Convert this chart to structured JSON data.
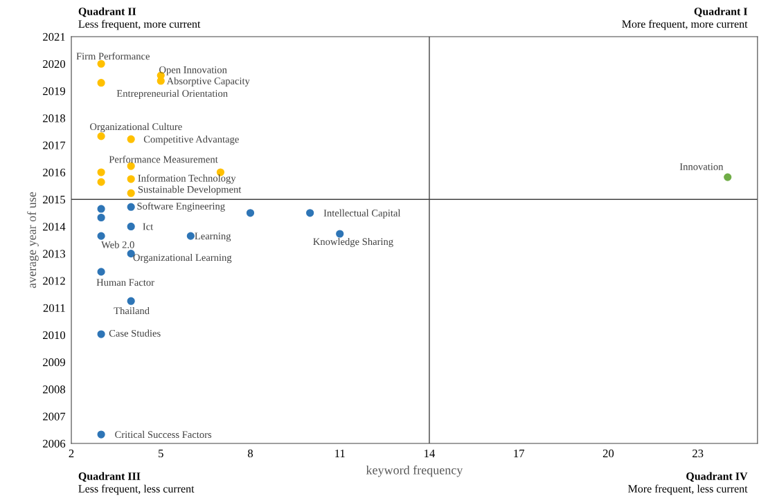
{
  "chart_data": {
    "type": "scatter",
    "xlabel": "keyword frequency",
    "ylabel": "average year of use",
    "xlim": [
      2,
      25
    ],
    "xticks": [
      2,
      5,
      8,
      11,
      14,
      17,
      20,
      23
    ],
    "ylim": [
      2006,
      2021
    ],
    "yticks": [
      2006,
      2007,
      2008,
      2009,
      2010,
      2011,
      2012,
      2013,
      2014,
      2015,
      2016,
      2017,
      2018,
      2019,
      2020,
      2021
    ],
    "grid": false,
    "legend": false,
    "marker": "circle",
    "series": [
      {
        "color": "#ffc000",
        "x": [
          3,
          3,
          5,
          5,
          3,
          4,
          4,
          7,
          3,
          4,
          3,
          4
        ],
        "values": [
          2020.0,
          2019.3,
          2019.57,
          2019.37,
          2017.33,
          2017.22,
          2016.23,
          2016.0,
          2016.0,
          2015.75,
          2015.64,
          2015.23
        ]
      },
      {
        "color": "#70ad47",
        "x": [
          24
        ],
        "values": [
          2015.82
        ]
      },
      {
        "color": "#2e75b6",
        "x": [
          3,
          3,
          4,
          4,
          8,
          10,
          11,
          6,
          3,
          4,
          3,
          4,
          3,
          3
        ],
        "values": [
          2014.65,
          2014.33,
          2014.72,
          2014.0,
          2014.5,
          2014.5,
          2013.73,
          2013.65,
          2013.65,
          2013.0,
          2012.33,
          2011.25,
          2010.03,
          2006.33
        ]
      }
    ],
    "ref_lines": [
      {
        "axis": "x",
        "value": 14,
        "color": "#404040"
      },
      {
        "axis": "y",
        "value": 2015,
        "color": "#404040"
      }
    ],
    "annotations": [
      {
        "text": "Firm Performance",
        "x": 3,
        "y": 2020.0
      },
      {
        "text": "Open Innovation",
        "x": 5,
        "y": 2019.57
      },
      {
        "text": "Absorptive Capacity",
        "x": 5,
        "y": 2019.37
      },
      {
        "text": "Entrepreneurial Orientation",
        "x": 3,
        "y": 2019.3
      },
      {
        "text": "Organizational Culture",
        "x": 3,
        "y": 2017.33
      },
      {
        "text": "Competitive Advantage",
        "x": 4,
        "y": 2017.22
      },
      {
        "text": "Performance Measurement",
        "x": 4,
        "y": 2016.23
      },
      {
        "text": "Information Technology",
        "x": 4,
        "y": 2015.75
      },
      {
        "text": "Sustainable Development",
        "x": 4,
        "y": 2015.23
      },
      {
        "text": "Innovation",
        "x": 24,
        "y": 2015.82
      },
      {
        "text": "Software Engineering",
        "x": 4,
        "y": 2014.72
      },
      {
        "text": "Ict",
        "x": 4,
        "y": 2014.0
      },
      {
        "text": "Intellectual Capital",
        "x": 10,
        "y": 2014.5
      },
      {
        "text": "Learning",
        "x": 6,
        "y": 2013.65
      },
      {
        "text": "Knowledge Sharing",
        "x": 11,
        "y": 2013.73
      },
      {
        "text": "Web 2.0",
        "x": 3,
        "y": 2013.65
      },
      {
        "text": "Organizational Learning",
        "x": 4,
        "y": 2013.0
      },
      {
        "text": "Human Factor",
        "x": 3,
        "y": 2012.33
      },
      {
        "text": "Thailand",
        "x": 4,
        "y": 2011.25
      },
      {
        "text": "Case Studies",
        "x": 3,
        "y": 2010.03
      },
      {
        "text": "Critical Success Factors",
        "x": 3,
        "y": 2006.33
      },
      "Quadrant II",
      "Less frequent, more current",
      "Quadrant I",
      "More frequent, more current",
      "Quadrant III",
      "Less frequent, less current",
      "Quadrant IV",
      "More frequent, less current"
    ]
  }
}
